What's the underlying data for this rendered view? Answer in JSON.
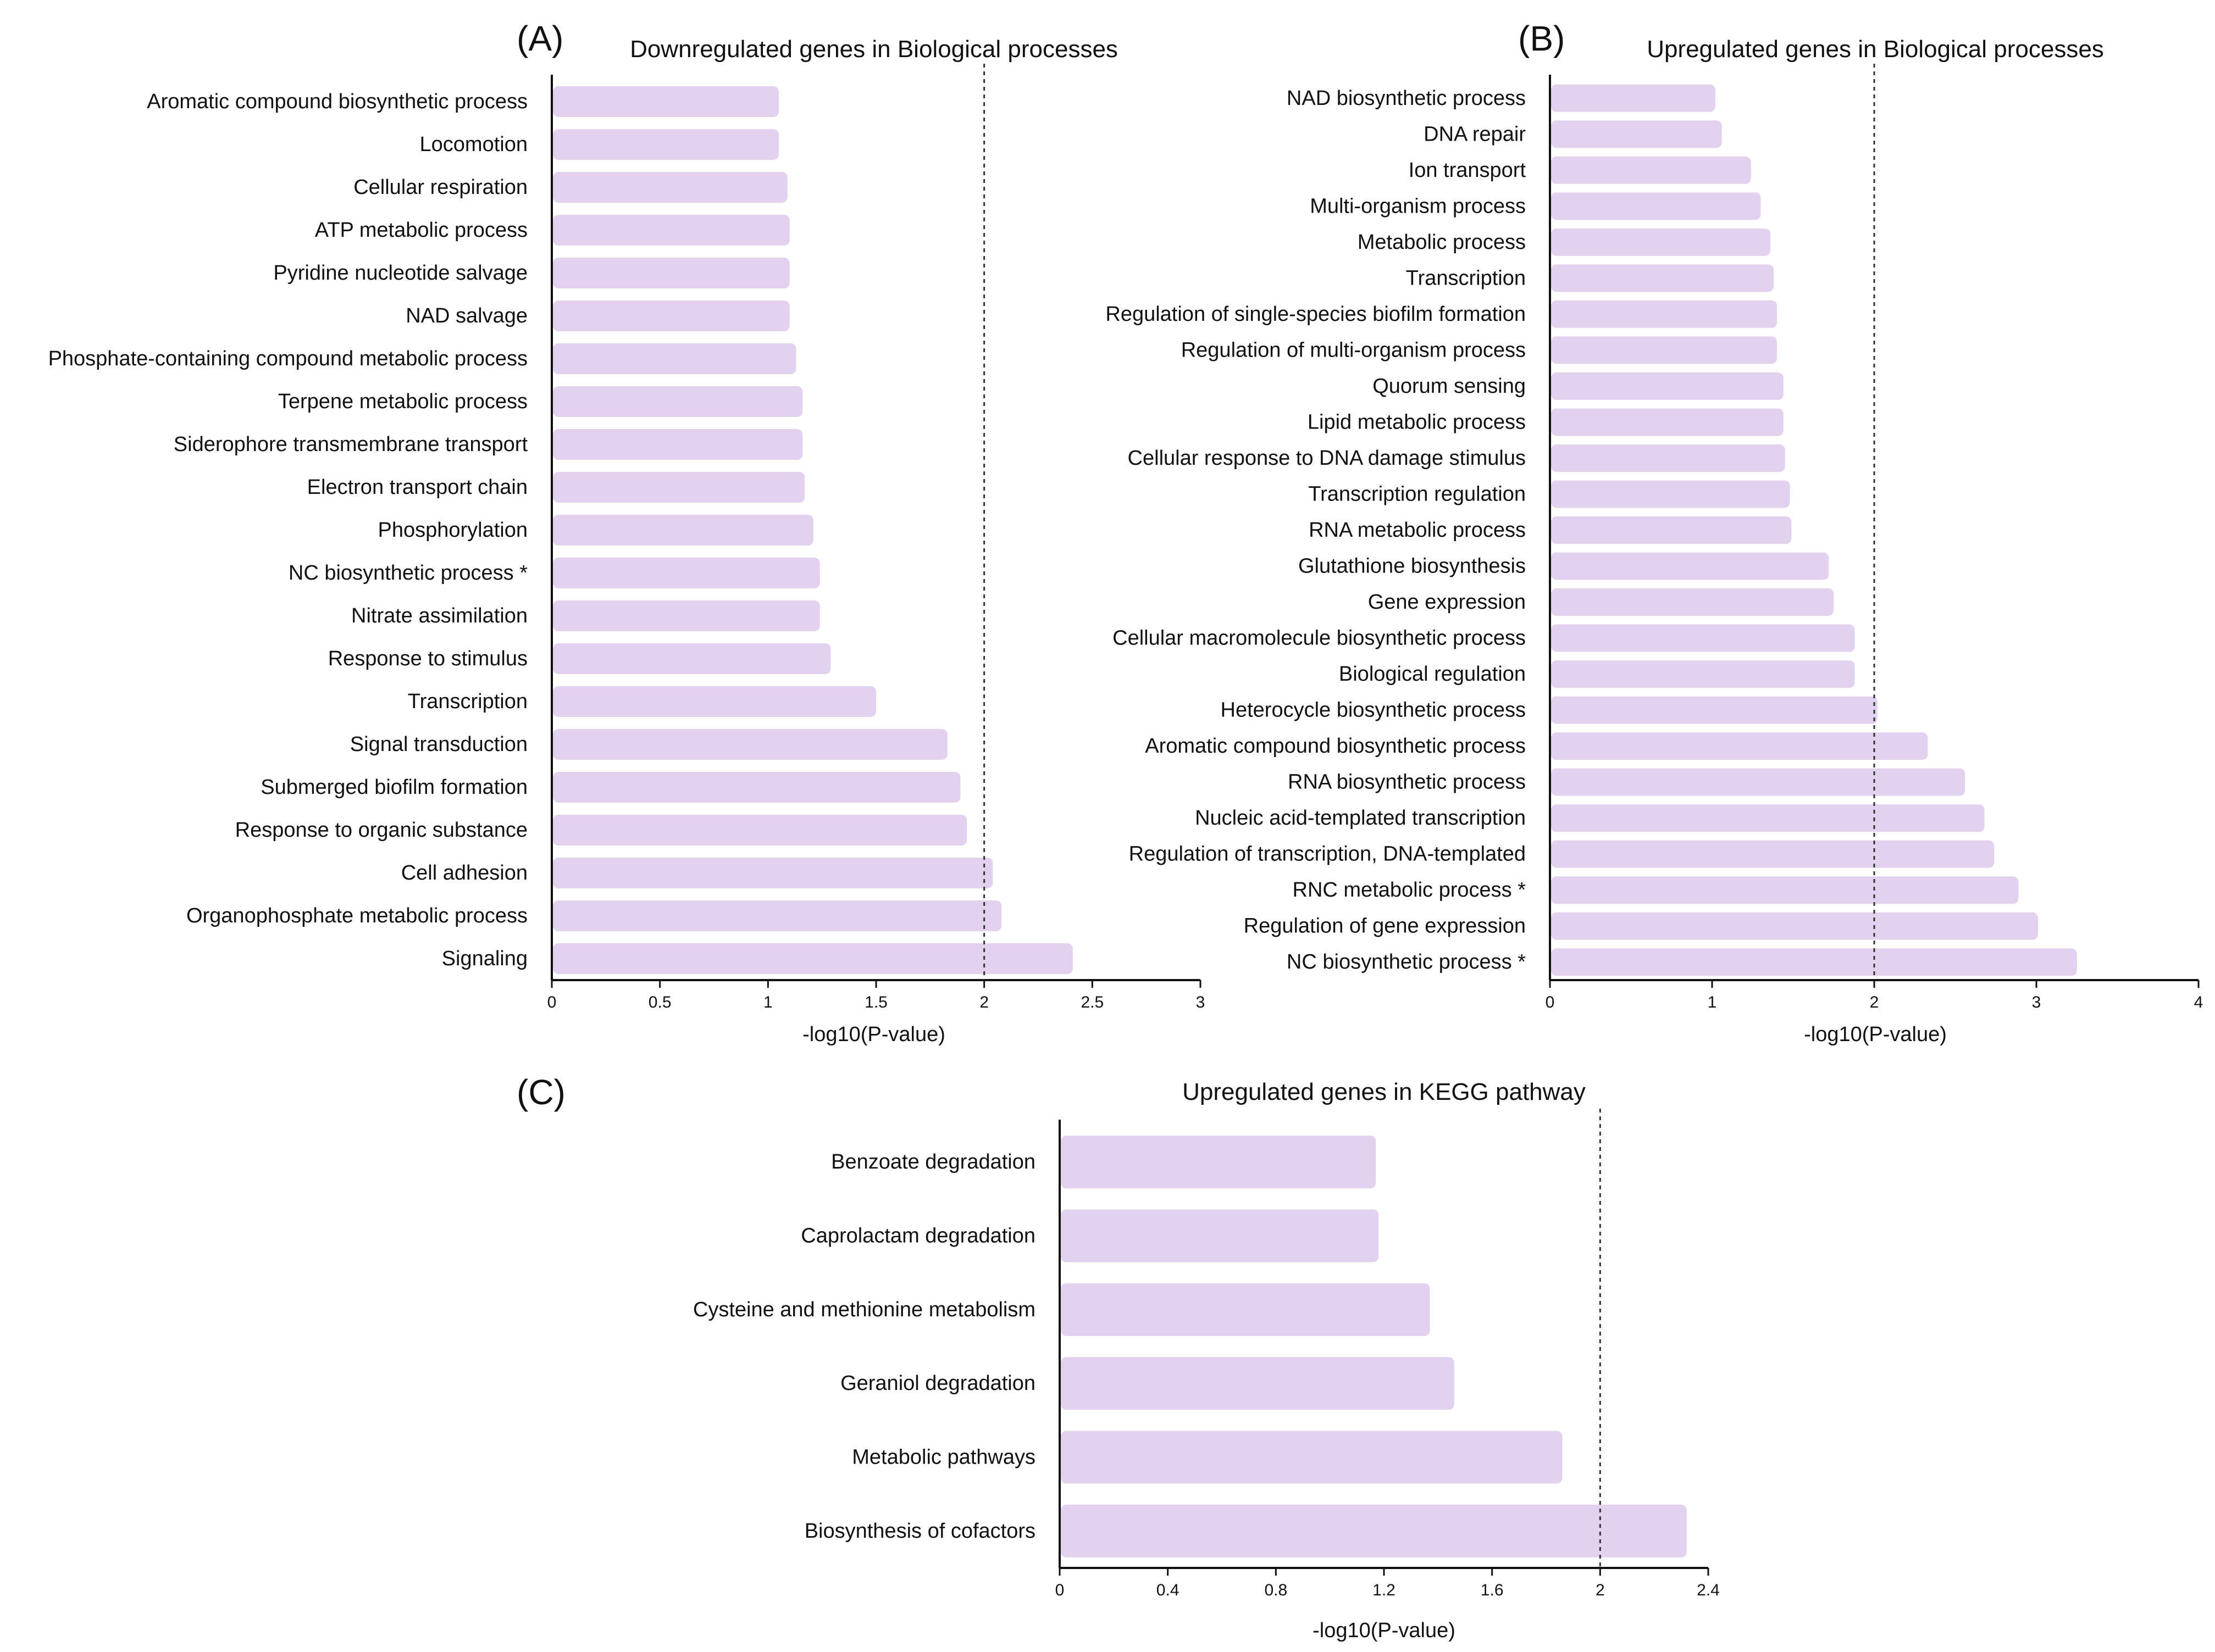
{
  "colors": {
    "bar": "#e2d2ef",
    "axis": "#111111",
    "threshold": "#333333"
  },
  "chart_data": [
    {
      "id": "A",
      "type": "bar",
      "orientation": "horizontal",
      "panel_label": "(A)",
      "title": "Downregulated genes in Biological processes",
      "xlabel": "-log10(P-value)",
      "xlim": [
        0,
        3
      ],
      "xticks": [
        "0",
        "0.5",
        "1",
        "1.5",
        "2",
        "2.5",
        "3"
      ],
      "tick_values": [
        0,
        0.5,
        1,
        1.5,
        2,
        2.5,
        3
      ],
      "threshold": 2,
      "categories": [
        "Aromatic compound biosynthetic process",
        "Locomotion",
        "Cellular respiration",
        "ATP metabolic process",
        "Pyridine nucleotide salvage",
        "NAD salvage",
        "Phosphate-containing compound metabolic process",
        "Terpene metabolic process",
        "Siderophore transmembrane transport",
        "Electron transport chain",
        "Phosphorylation",
        "NC biosynthetic process *",
        "Nitrate assimilation",
        "Response to stimulus",
        "Transcription",
        "Signal transduction",
        "Submerged biofilm formation",
        "Response to organic substance",
        "Cell adhesion",
        "Organophosphate metabolic process",
        "Signaling"
      ],
      "values": [
        1.05,
        1.05,
        1.09,
        1.1,
        1.1,
        1.1,
        1.13,
        1.16,
        1.16,
        1.17,
        1.21,
        1.24,
        1.24,
        1.29,
        1.5,
        1.83,
        1.89,
        1.92,
        2.04,
        2.08,
        2.41
      ]
    },
    {
      "id": "B",
      "type": "bar",
      "orientation": "horizontal",
      "panel_label": "(B)",
      "title": "Upregulated genes in Biological processes",
      "xlabel": "-log10(P-value)",
      "xlim": [
        0,
        4
      ],
      "xticks": [
        "0",
        "1",
        "2",
        "3",
        "4"
      ],
      "tick_values": [
        0,
        1,
        2,
        3,
        4
      ],
      "threshold": 2,
      "categories": [
        "NAD biosynthetic process",
        "DNA repair",
        "Ion transport",
        "Multi-organism process",
        "Metabolic process",
        "Transcription",
        "Regulation of single-species biofilm formation",
        "Regulation of multi-organism process",
        "Quorum sensing",
        "Lipid metabolic process",
        "Cellular response to DNA damage stimulus",
        "Transcription regulation",
        "RNA metabolic process",
        "Glutathione biosynthesis",
        "Gene expression",
        "Cellular macromolecule biosynthetic process",
        "Biological regulation",
        "Heterocycle biosynthetic process",
        "Aromatic compound biosynthetic process",
        "RNA biosynthetic process",
        "Nucleic acid-templated transcription",
        "Regulation of transcription, DNA-templated",
        "RNC metabolic process *",
        "Regulation of gene expression",
        "NC biosynthetic process *"
      ],
      "values": [
        1.02,
        1.06,
        1.24,
        1.3,
        1.36,
        1.38,
        1.4,
        1.4,
        1.44,
        1.44,
        1.45,
        1.48,
        1.49,
        1.72,
        1.75,
        1.88,
        1.88,
        2.02,
        2.33,
        2.56,
        2.68,
        2.74,
        2.89,
        3.01,
        3.25
      ]
    },
    {
      "id": "C",
      "type": "bar",
      "orientation": "horizontal",
      "panel_label": "(C)",
      "title": "Upregulated genes in KEGG pathway",
      "xlabel": "-log10(P-value)",
      "xlim": [
        0,
        2.4
      ],
      "xticks": [
        "0",
        "0.4",
        "0.8",
        "1.2",
        "1.6",
        "2",
        "2.4"
      ],
      "tick_values": [
        0,
        0.4,
        0.8,
        1.2,
        1.6,
        2,
        2.4
      ],
      "threshold": 2,
      "categories": [
        "Benzoate degradation",
        "Caprolactam degradation",
        "Cysteine and methionine metabolism",
        "Geraniol degradation",
        "Metabolic pathways",
        "Biosynthesis of cofactors"
      ],
      "values": [
        1.17,
        1.18,
        1.37,
        1.46,
        1.86,
        2.32
      ]
    }
  ]
}
